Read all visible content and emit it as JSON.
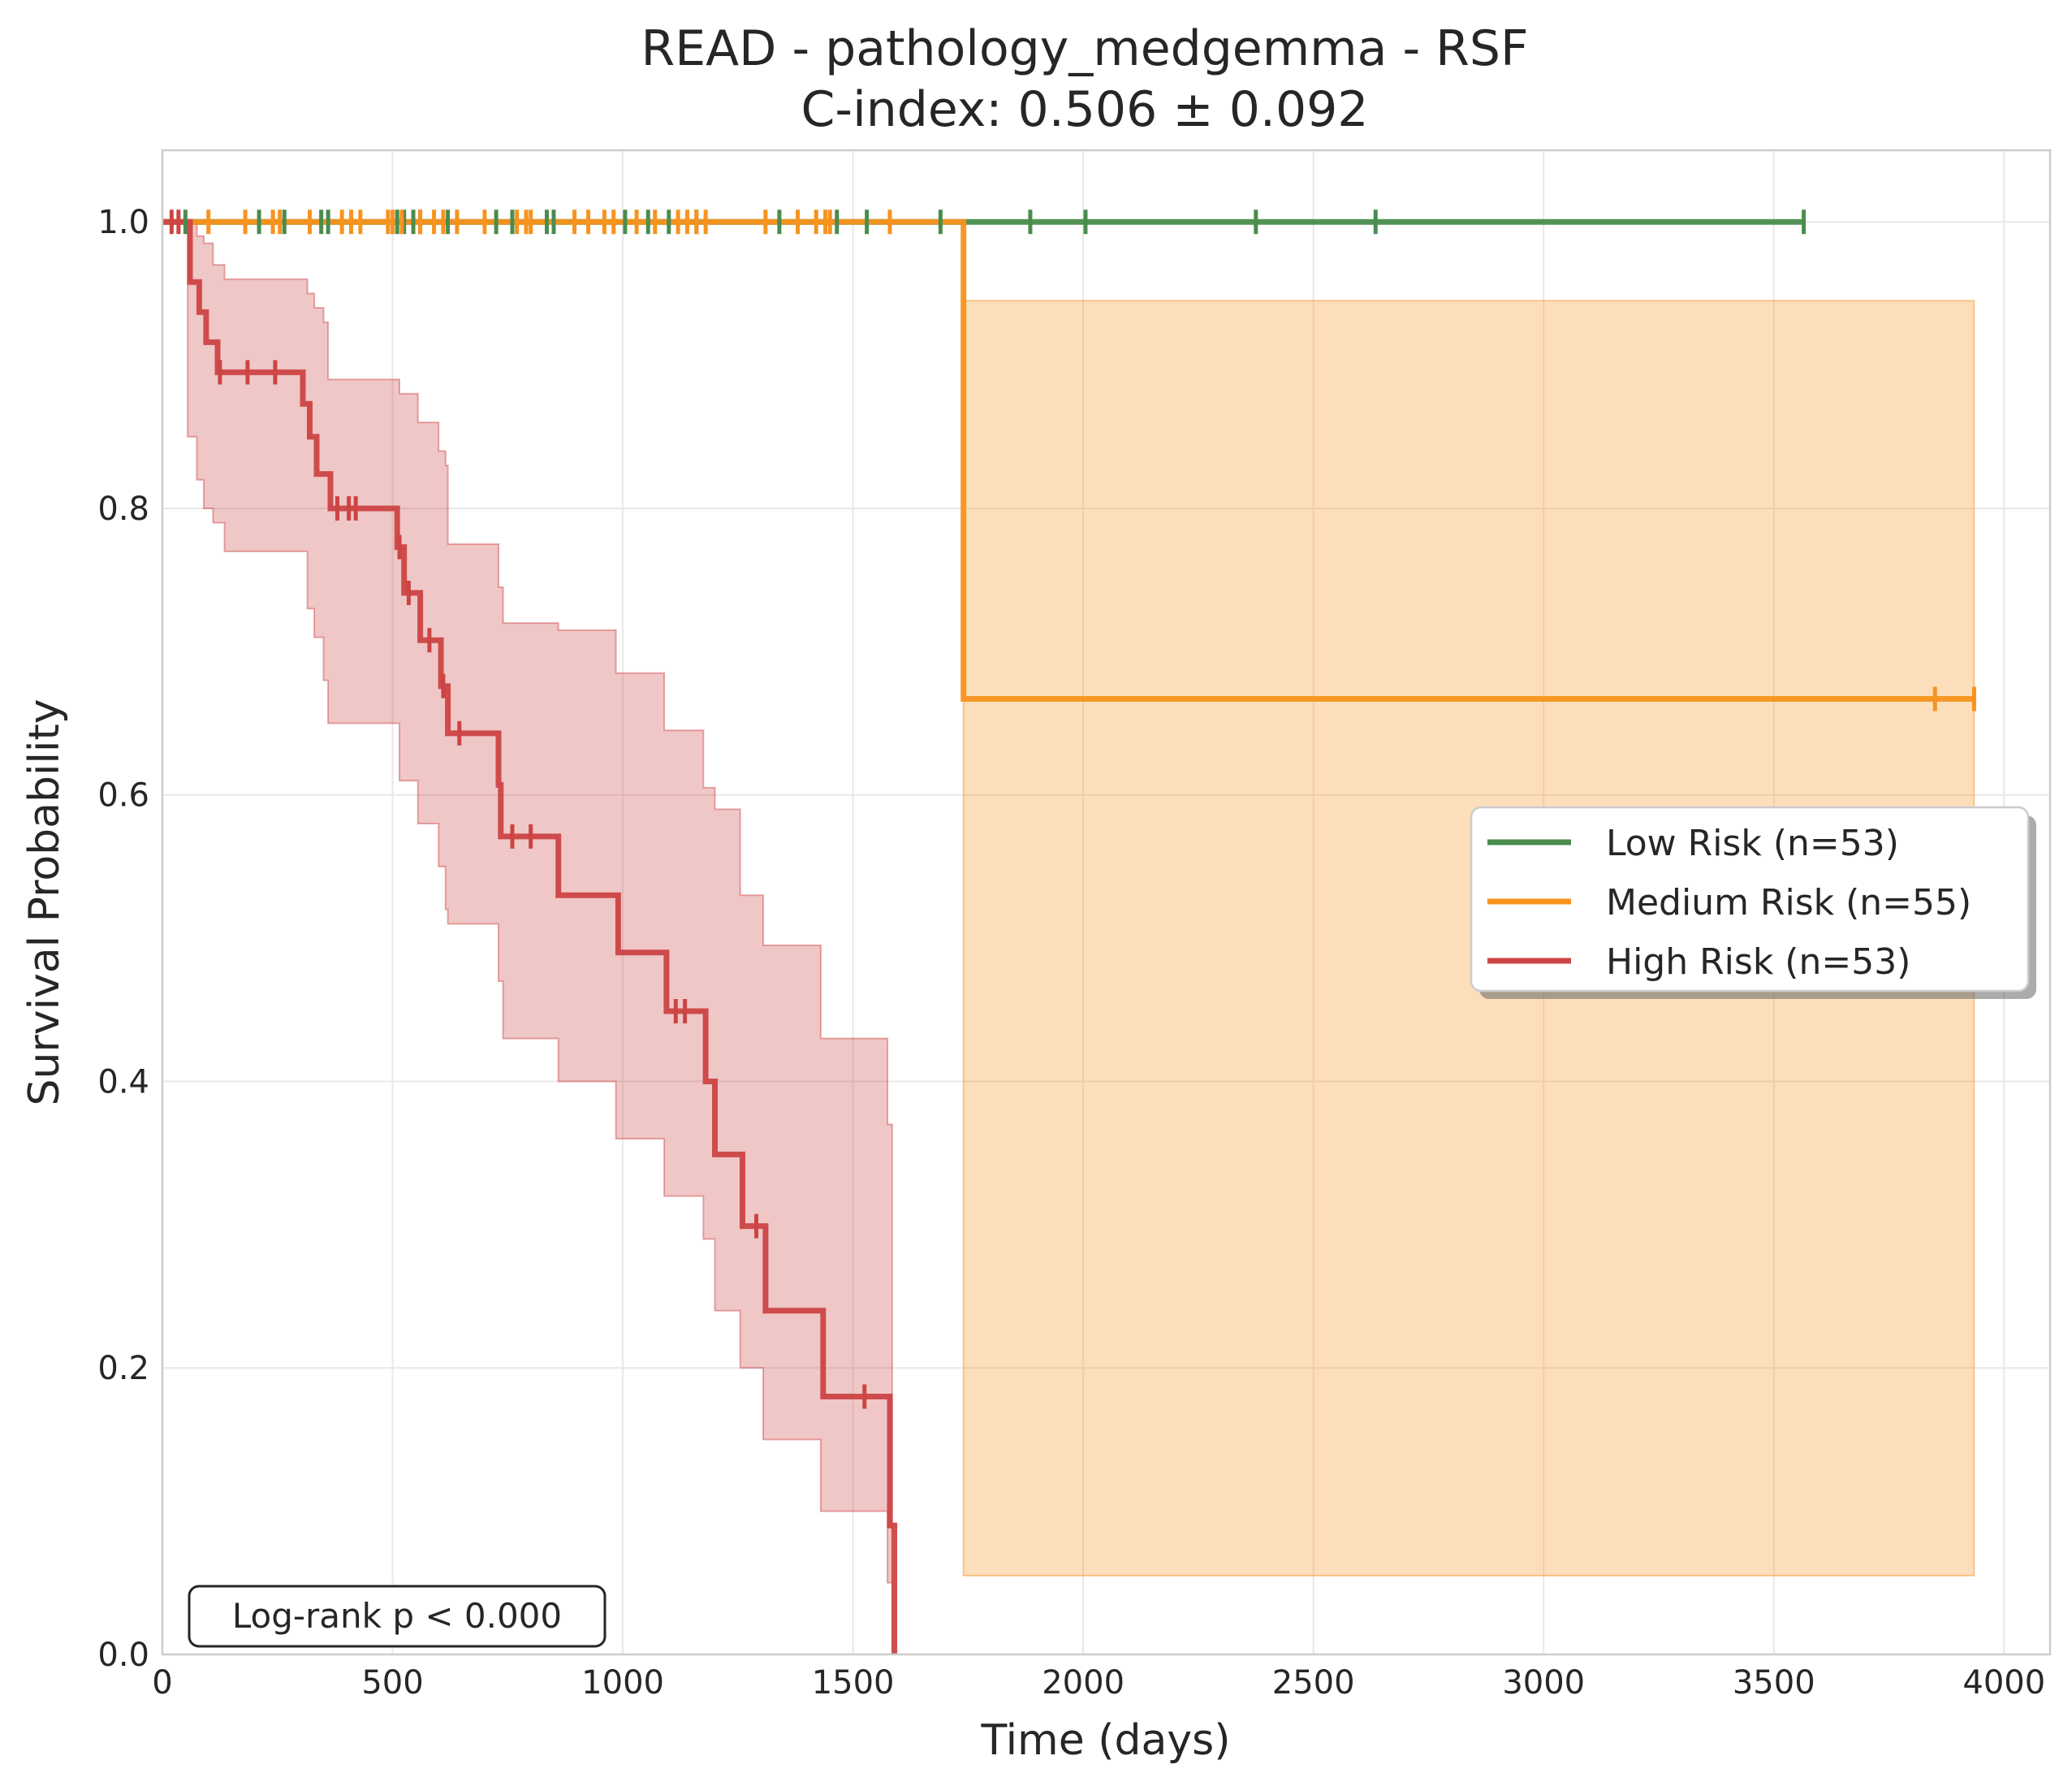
{
  "chart_data": {
    "type": "line",
    "subtype": "kaplan-meier",
    "title": "READ - pathology_medgemma - RSF",
    "subtitle": "C-index: 0.506 ± 0.092",
    "xlabel": "Time (days)",
    "ylabel": "Survival Probability",
    "xlim": [
      0,
      4100
    ],
    "ylim": [
      0,
      1.05
    ],
    "xticks": [
      0,
      500,
      1000,
      1500,
      2000,
      2500,
      3000,
      3500,
      4000
    ],
    "yticks": [
      0.0,
      0.2,
      0.4,
      0.6,
      0.8,
      1.0
    ],
    "xtick_labels": [
      "0",
      "500",
      "1000",
      "1500",
      "2000",
      "2500",
      "3000",
      "3500",
      "4000"
    ],
    "ytick_labels": [
      "0.0",
      "0.2",
      "0.4",
      "0.6",
      "0.8",
      "1.0"
    ],
    "grid": true,
    "legend_position": "center-right",
    "annotation": "Log-rank p < 0.000",
    "series": [
      {
        "name": "Low Risk (n=53)",
        "color": "#4a8c4e",
        "steps": [
          [
            0,
            1.0
          ],
          [
            3565,
            1.0
          ]
        ],
        "ci": null,
        "censor_times": [
          50,
          210,
          265,
          345,
          360,
          510,
          525,
          545,
          560,
          620,
          725,
          760,
          835,
          850,
          1005,
          1055,
          1100,
          1160,
          1340,
          1465,
          1530,
          1690,
          1885,
          2005,
          2375,
          2635,
          3565
        ]
      },
      {
        "name": "Medium Risk (n=55)",
        "color": "#f7931e",
        "steps": [
          [
            0,
            1.0
          ],
          [
            1740,
            1.0
          ],
          [
            1740,
            0.667
          ],
          [
            3935,
            0.667
          ]
        ],
        "ci": [
          [
            1740,
            0.055,
            0.945
          ],
          [
            3935,
            0.055,
            0.945
          ]
        ],
        "censor_times": [
          100,
          180,
          240,
          255,
          320,
          390,
          410,
          430,
          490,
          500,
          520,
          560,
          590,
          610,
          640,
          700,
          770,
          790,
          800,
          895,
          925,
          960,
          980,
          1030,
          1070,
          1120,
          1140,
          1160,
          1180,
          1310,
          1380,
          1420,
          1440,
          1450,
          1580,
          3850,
          3935
        ]
      },
      {
        "name": "High Risk (n=53)",
        "color": "#cc4444",
        "steps": [
          [
            0,
            1.0
          ],
          [
            60,
            1.0
          ],
          [
            60,
            0.958
          ],
          [
            80,
            0.958
          ],
          [
            80,
            0.937
          ],
          [
            95,
            0.937
          ],
          [
            95,
            0.916
          ],
          [
            120,
            0.916
          ],
          [
            120,
            0.895
          ],
          [
            305,
            0.895
          ],
          [
            305,
            0.873
          ],
          [
            320,
            0.873
          ],
          [
            320,
            0.85
          ],
          [
            335,
            0.85
          ],
          [
            335,
            0.824
          ],
          [
            365,
            0.824
          ],
          [
            365,
            0.8
          ],
          [
            510,
            0.8
          ],
          [
            510,
            0.773
          ],
          [
            525,
            0.773
          ],
          [
            525,
            0.741
          ],
          [
            560,
            0.741
          ],
          [
            560,
            0.708
          ],
          [
            605,
            0.708
          ],
          [
            605,
            0.676
          ],
          [
            620,
            0.676
          ],
          [
            620,
            0.643
          ],
          [
            730,
            0.643
          ],
          [
            730,
            0.607
          ],
          [
            735,
            0.607
          ],
          [
            735,
            0.571
          ],
          [
            860,
            0.571
          ],
          [
            860,
            0.53
          ],
          [
            990,
            0.53
          ],
          [
            990,
            0.49
          ],
          [
            1095,
            0.49
          ],
          [
            1095,
            0.449
          ],
          [
            1180,
            0.449
          ],
          [
            1180,
            0.4
          ],
          [
            1200,
            0.4
          ],
          [
            1200,
            0.349
          ],
          [
            1260,
            0.349
          ],
          [
            1260,
            0.299
          ],
          [
            1310,
            0.299
          ],
          [
            1310,
            0.24
          ],
          [
            1435,
            0.24
          ],
          [
            1435,
            0.18
          ],
          [
            1580,
            0.18
          ],
          [
            1580,
            0.09
          ],
          [
            1590,
            0.09
          ],
          [
            1590,
            0.0
          ]
        ],
        "ci": [
          [
            0,
            1.0,
            1.0
          ],
          [
            55,
            0.85,
            1.0
          ],
          [
            75,
            0.82,
            0.99
          ],
          [
            90,
            0.8,
            0.985
          ],
          [
            110,
            0.79,
            0.97
          ],
          [
            135,
            0.77,
            0.96
          ],
          [
            300,
            0.77,
            0.96
          ],
          [
            315,
            0.73,
            0.95
          ],
          [
            330,
            0.71,
            0.94
          ],
          [
            350,
            0.68,
            0.93
          ],
          [
            360,
            0.65,
            0.89
          ],
          [
            500,
            0.65,
            0.89
          ],
          [
            515,
            0.61,
            0.88
          ],
          [
            555,
            0.58,
            0.86
          ],
          [
            600,
            0.55,
            0.84
          ],
          [
            615,
            0.52,
            0.83
          ],
          [
            620,
            0.51,
            0.775
          ],
          [
            725,
            0.51,
            0.775
          ],
          [
            730,
            0.47,
            0.745
          ],
          [
            740,
            0.43,
            0.72
          ],
          [
            860,
            0.4,
            0.715
          ],
          [
            985,
            0.36,
            0.685
          ],
          [
            1090,
            0.32,
            0.645
          ],
          [
            1175,
            0.29,
            0.605
          ],
          [
            1200,
            0.24,
            0.59
          ],
          [
            1255,
            0.2,
            0.53
          ],
          [
            1305,
            0.15,
            0.495
          ],
          [
            1430,
            0.1,
            0.43
          ],
          [
            1575,
            0.05,
            0.37
          ],
          [
            1585,
            0.0,
            0.3
          ]
        ]
      }
    ],
    "high_risk_censors": [
      [
        20,
        1.0
      ],
      [
        35,
        1.0
      ],
      [
        125,
        0.895
      ],
      [
        185,
        0.895
      ],
      [
        245,
        0.895
      ],
      [
        380,
        0.8
      ],
      [
        405,
        0.8
      ],
      [
        420,
        0.8
      ],
      [
        515,
        0.773
      ],
      [
        535,
        0.741
      ],
      [
        580,
        0.708
      ],
      [
        610,
        0.676
      ],
      [
        645,
        0.643
      ],
      [
        760,
        0.571
      ],
      [
        800,
        0.571
      ],
      [
        1115,
        0.449
      ],
      [
        1135,
        0.449
      ],
      [
        1290,
        0.299
      ],
      [
        1525,
        0.18
      ]
    ]
  }
}
